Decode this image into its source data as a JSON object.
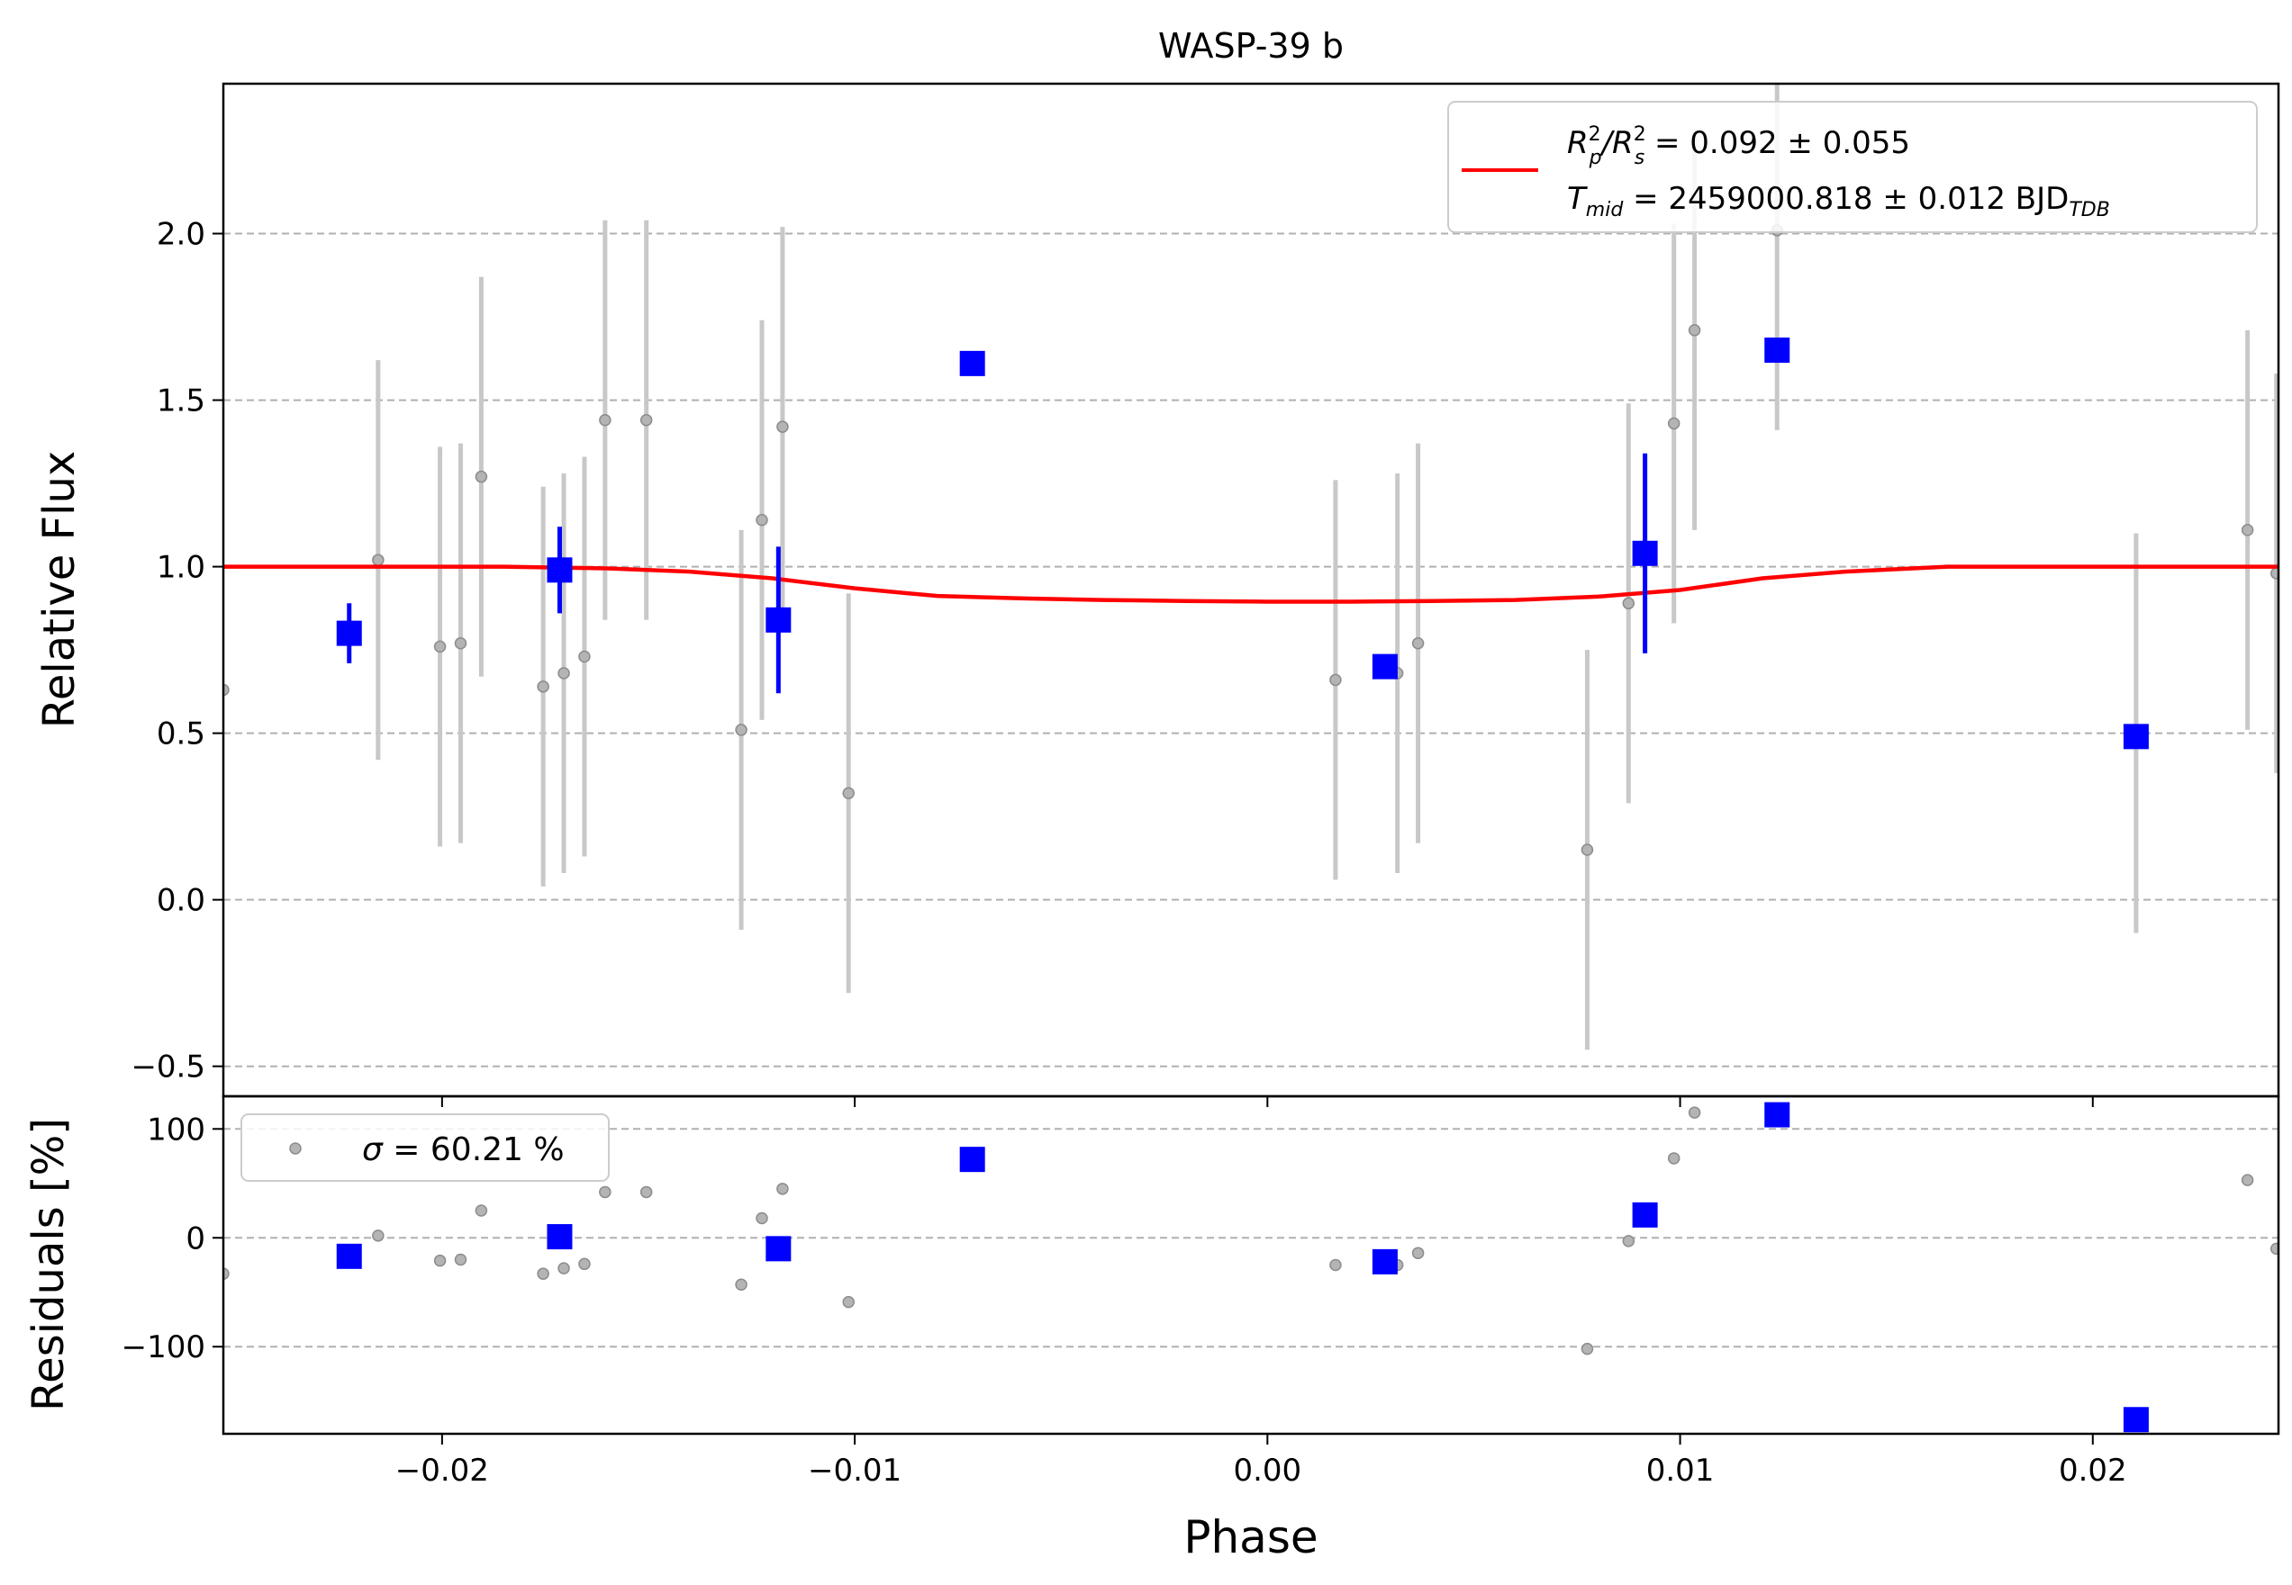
{
  "chart_data": [
    {
      "type": "scatter",
      "panel": "main",
      "title": "WASP-39 b",
      "xlabel": "",
      "ylabel": "Relative Flux",
      "xlim": [
        -0.0253,
        0.0245
      ],
      "ylim": [
        -0.59,
        2.45
      ],
      "xticks": [
        -0.02,
        -0.01,
        0.0,
        0.01,
        0.02
      ],
      "xtick_labels": [
        "",
        "",
        "",
        "",
        ""
      ],
      "yticks": [
        -0.5,
        0.0,
        0.5,
        1.0,
        1.5,
        2.0
      ],
      "ytick_labels": [
        "−0.5",
        "0.0",
        "0.5",
        "1.0",
        "1.5",
        "2.0"
      ],
      "grid": "horizontal dashed",
      "legend": {
        "placement": "top-right",
        "entries": [
          {
            "line1_main": "R",
            "line1_sup1": "2",
            "line1_sub1": "p",
            "line1_mid": "/R",
            "line1_sup2": "2",
            "line1_sub2": "s",
            "line1_rest": " = 0.092 ± 0.055",
            "line2_main": "T",
            "line2_sub": "mid",
            "line2_rest": " = 2459000.818 ± 0.012 BJD",
            "line2_sub2": "TDB"
          }
        ]
      },
      "series": [
        {
          "kind": "data",
          "color": "#808080",
          "points": [
            {
              "x": -0.0253,
              "y": 0.63,
              "err": 0
            },
            {
              "x": -0.02155,
              "y": 1.02,
              "err": 0.6
            },
            {
              "x": -0.02005,
              "y": 0.76,
              "err": 0.6
            },
            {
              "x": -0.01955,
              "y": 0.77,
              "err": 0.6
            },
            {
              "x": -0.01905,
              "y": 1.27,
              "err": 0.6
            },
            {
              "x": -0.01755,
              "y": 0.64,
              "err": 0.6
            },
            {
              "x": -0.01705,
              "y": 0.68,
              "err": 0.6
            },
            {
              "x": -0.01655,
              "y": 0.73,
              "err": 0.6
            },
            {
              "x": -0.01605,
              "y": 1.44,
              "err": 0.6
            },
            {
              "x": -0.01505,
              "y": 1.44,
              "err": 0.6
            },
            {
              "x": -0.01275,
              "y": 0.51,
              "err": 0.6
            },
            {
              "x": -0.01225,
              "y": 1.14,
              "err": 0.6
            },
            {
              "x": -0.01175,
              "y": 1.42,
              "err": 0.6
            },
            {
              "x": -0.01015,
              "y": 0.32,
              "err": 0.6
            },
            {
              "x": 0.00165,
              "y": 0.66,
              "err": 0.6
            },
            {
              "x": 0.00315,
              "y": 0.68,
              "err": 0.6
            },
            {
              "x": 0.00365,
              "y": 0.77,
              "err": 0.6
            },
            {
              "x": 0.00775,
              "y": 0.15,
              "err": 0.6
            },
            {
              "x": 0.00875,
              "y": 0.89,
              "err": 0.6
            },
            {
              "x": 0.00985,
              "y": 1.43,
              "err": 0.6
            },
            {
              "x": 0.01035,
              "y": 1.71,
              "err": 0.6
            },
            {
              "x": 0.01235,
              "y": 2.01,
              "err": 0.6
            },
            {
              "x": 0.02105,
              "y": 0.5,
              "err": 0.6
            },
            {
              "x": 0.02375,
              "y": 1.11,
              "err": 0.6
            },
            {
              "x": 0.02445,
              "y": 0.98,
              "err": 0.6
            }
          ]
        },
        {
          "kind": "binned",
          "color": "#0000ff",
          "points": [
            {
              "x": -0.02225,
              "y": 0.8,
              "err": 0.09
            },
            {
              "x": -0.01715,
              "y": 0.99,
              "err": 0.13
            },
            {
              "x": -0.01185,
              "y": 0.84,
              "err": 0.22
            },
            {
              "x": -0.00715,
              "y": 1.61,
              "err": 0
            },
            {
              "x": 0.00285,
              "y": 0.7,
              "err": 0
            },
            {
              "x": 0.00915,
              "y": 1.04,
              "err": 0.3
            },
            {
              "x": 0.01235,
              "y": 1.65,
              "err": 0
            },
            {
              "x": 0.02105,
              "y": 0.49,
              "err": 0
            }
          ]
        },
        {
          "kind": "model",
          "color": "#ff0000",
          "x": [
            -0.0253,
            -0.0185,
            -0.016,
            -0.014,
            -0.012,
            -0.01,
            -0.008,
            -0.006,
            -0.004,
            -0.002,
            0.0,
            0.002,
            0.004,
            0.006,
            0.008,
            0.01,
            0.012,
            0.014,
            0.0165,
            0.0185,
            0.0245
          ],
          "y": [
            1.0,
            1.0,
            0.995,
            0.985,
            0.965,
            0.935,
            0.912,
            0.905,
            0.9,
            0.897,
            0.895,
            0.895,
            0.897,
            0.9,
            0.91,
            0.93,
            0.965,
            0.985,
            1.0,
            1.0,
            1.0
          ]
        }
      ]
    },
    {
      "type": "scatter",
      "panel": "residuals",
      "title": "",
      "xlabel": "Phase",
      "ylabel": "Residuals [%]",
      "xlim": [
        -0.0253,
        0.0245
      ],
      "ylim": [
        -180,
        130
      ],
      "xticks": [
        -0.02,
        -0.01,
        0.0,
        0.01,
        0.02
      ],
      "xtick_labels": [
        "−0.02",
        "−0.01",
        "0.00",
        "0.01",
        "0.02"
      ],
      "yticks": [
        -100,
        0,
        100
      ],
      "ytick_labels": [
        "−100",
        "0",
        "100"
      ],
      "grid": "horizontal dashed",
      "legend": {
        "placement": "top-left",
        "entries": [
          {
            "sym": "σ",
            "rest": " = 60.21 %"
          }
        ]
      },
      "series": [
        {
          "kind": "data",
          "color": "#808080",
          "points": [
            {
              "x": -0.0253,
              "y": -33
            },
            {
              "x": -0.02155,
              "y": 2
            },
            {
              "x": -0.02005,
              "y": -21
            },
            {
              "x": -0.01955,
              "y": -20
            },
            {
              "x": -0.01905,
              "y": 25
            },
            {
              "x": -0.01755,
              "y": -33
            },
            {
              "x": -0.01705,
              "y": -28
            },
            {
              "x": -0.01655,
              "y": -24
            },
            {
              "x": -0.01605,
              "y": 42
            },
            {
              "x": -0.01505,
              "y": 42
            },
            {
              "x": -0.01275,
              "y": -43
            },
            {
              "x": -0.01225,
              "y": 18
            },
            {
              "x": -0.01175,
              "y": 45
            },
            {
              "x": -0.01015,
              "y": -59
            },
            {
              "x": 0.00165,
              "y": -25
            },
            {
              "x": 0.00315,
              "y": -25
            },
            {
              "x": 0.00365,
              "y": -14
            },
            {
              "x": 0.00775,
              "y": -102
            },
            {
              "x": 0.00875,
              "y": -3
            },
            {
              "x": 0.00985,
              "y": 73
            },
            {
              "x": 0.01035,
              "y": 115
            },
            {
              "x": 0.02375,
              "y": 53
            },
            {
              "x": 0.02445,
              "y": -10
            }
          ]
        },
        {
          "kind": "binned",
          "color": "#0000ff",
          "points": [
            {
              "x": -0.02225,
              "y": -17
            },
            {
              "x": -0.01715,
              "y": 1
            },
            {
              "x": -0.01185,
              "y": -10
            },
            {
              "x": -0.00715,
              "y": 72
            },
            {
              "x": 0.00285,
              "y": -22
            },
            {
              "x": 0.00915,
              "y": 21
            },
            {
              "x": 0.01235,
              "y": 113
            },
            {
              "x": 0.02105,
              "y": -167
            }
          ]
        }
      ]
    }
  ]
}
